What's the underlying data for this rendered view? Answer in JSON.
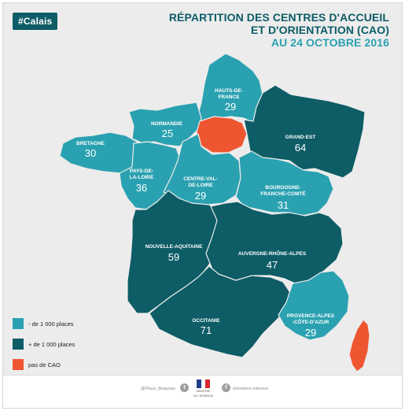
{
  "hashtag": "#Calais",
  "title": {
    "line1": "RÉPARTITION DES CENTRES D'ACCUEIL",
    "line2": "ET D'ORIENTATION (CAO)",
    "line3": "AU 24 OCTOBRE 2016"
  },
  "colors": {
    "light": "#2aa1b0",
    "dark": "#0d5c66",
    "none": "#ee5632",
    "background": "#ececec"
  },
  "regions": {
    "hauts_de_france": {
      "name_1": "HAUTS-DE-",
      "name_2": "FRANCE",
      "value": "29",
      "category": "light"
    },
    "normandie": {
      "name_1": "NORMANDIE",
      "value": "25",
      "category": "light"
    },
    "ile_de_france": {
      "category": "none"
    },
    "grand_est": {
      "name_1": "GRAND-EST",
      "value": "64",
      "category": "dark"
    },
    "bretagne": {
      "name_1": "BRETAGNE",
      "value": "30",
      "category": "light"
    },
    "pays_de_la_loire": {
      "name_1": "PAYS-DE-",
      "name_2": "LA-LOIRE",
      "value": "36",
      "category": "light"
    },
    "centre_val_de_loire": {
      "name_1": "CENTRE-VAL-",
      "name_2": "DE-LOIRE",
      "value": "29",
      "category": "light"
    },
    "bourgogne_franche_comte": {
      "name_1": "BOURGOGNE-",
      "name_2": "FRANCHE-COMTÉ",
      "value": "31",
      "category": "light"
    },
    "nouvelle_aquitaine": {
      "name_1": "NOUVELLE-AQUITAINE",
      "value": "59",
      "category": "dark"
    },
    "auvergne_rhone_alpes": {
      "name_1": "AUVERGNE-RHÔNE-ALPES",
      "value": "47",
      "category": "dark"
    },
    "occitanie": {
      "name_1": "OCCITANIE",
      "value": "71",
      "category": "dark"
    },
    "paca": {
      "name_1": "PROVENCE-ALPES",
      "name_2": "-CÔTE-D'AZUR",
      "value": "29",
      "category": "light"
    },
    "corse": {
      "category": "none"
    }
  },
  "legend": [
    {
      "label": "- de 1 000 places",
      "category": "light"
    },
    {
      "label": "+ de 1 000 places",
      "category": "dark"
    },
    {
      "label": "pas de CAO",
      "category": "none"
    }
  ],
  "footer": {
    "left_handle": "@Place_Beauvau",
    "right_handle": "/ministere.interieur",
    "logo_text_1": "MINISTÈRE",
    "logo_text_2": "DE L'INTÉRIEUR",
    "twitter_glyph": "t",
    "facebook_glyph": "f"
  }
}
